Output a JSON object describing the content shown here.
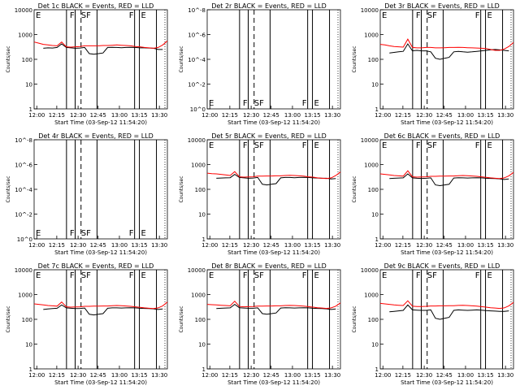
{
  "chart_data": [
    {
      "type": "line",
      "title": "Det 1c BLACK = Events, RED = LLD",
      "xlabel": "Start Time (03-Sep-12 11:54:20)",
      "ylabel": "Counts/sec",
      "yscale": "log",
      "x_tick_labels": [
        "12:00",
        "12:15",
        "12:30",
        "12:45",
        "13:00",
        "13:15",
        "13:30"
      ],
      "y_tick_labels": [
        "1",
        "10",
        "100",
        "1000",
        "10000"
      ],
      "flag_labels": [
        "E",
        "F",
        "SF",
        "F",
        "E"
      ],
      "has_data": true,
      "series": [
        {
          "name": "Events",
          "color": "#000000",
          "values": [
            null,
            null,
            280,
            290,
            285,
            300,
            420,
            300,
            290,
            280,
            285,
            300,
            170,
            160,
            170,
            180,
            300,
            305,
            300,
            295,
            300,
            305,
            300,
            290,
            290,
            285,
            280,
            250,
            250,
            null
          ]
        },
        {
          "name": "LLD",
          "color": "#ff0000",
          "values": [
            500,
            450,
            400,
            380,
            360,
            350,
            500,
            320,
            310,
            320,
            330,
            350,
            350,
            350,
            350,
            360,
            360,
            370,
            380,
            370,
            360,
            350,
            330,
            320,
            300,
            290,
            280,
            300,
            380,
            550
          ]
        }
      ]
    },
    {
      "type": "line",
      "title": "Det 2r BLACK = Events, RED = LLD",
      "xlabel": "Start Time (03-Sep-12 11:54:20)",
      "ylabel": "Counts/sec",
      "yscale": "log",
      "x_tick_labels": [
        "12:00",
        "12:15",
        "12:30",
        "12:45",
        "13:00",
        "13:15",
        "13:30"
      ],
      "y_tick_labels": [
        "10^0",
        "10^-2",
        "10^-4",
        "10^-6",
        "10^-8"
      ],
      "flag_labels": [
        "E",
        "F",
        "SF",
        "F",
        "E"
      ],
      "has_data": false,
      "series": []
    },
    {
      "type": "line",
      "title": "Det 3r BLACK = Events, RED = LLD",
      "xlabel": "Start Time (03-Sep-12 11:54:20)",
      "ylabel": "Counts/sec",
      "yscale": "log",
      "x_tick_labels": [
        "12:00",
        "12:15",
        "12:30",
        "12:45",
        "13:00",
        "13:15",
        "13:30"
      ],
      "y_tick_labels": [
        "1",
        "10",
        "100",
        "1000",
        "10000"
      ],
      "flag_labels": [
        "E",
        "F",
        "SF",
        "F",
        "E"
      ],
      "has_data": true,
      "series": [
        {
          "name": "Events",
          "color": "#000000",
          "values": [
            null,
            null,
            180,
            190,
            200,
            210,
            420,
            220,
            230,
            220,
            220,
            200,
            110,
            100,
            110,
            120,
            200,
            210,
            200,
            195,
            200,
            210,
            220,
            230,
            240,
            250,
            240,
            230,
            220,
            null
          ]
        },
        {
          "name": "LLD",
          "color": "#ff0000",
          "values": [
            400,
            380,
            350,
            330,
            320,
            310,
            650,
            300,
            290,
            290,
            300,
            300,
            290,
            290,
            295,
            300,
            300,
            305,
            300,
            295,
            290,
            285,
            280,
            270,
            250,
            230,
            230,
            260,
            330,
            480
          ]
        }
      ]
    },
    {
      "type": "line",
      "title": "Det 4r BLACK = Events, RED = LLD",
      "xlabel": "Start Time (03-Sep-12 11:54:20)",
      "ylabel": "Counts/sec",
      "yscale": "log",
      "x_tick_labels": [
        "12:00",
        "12:15",
        "12:30",
        "12:45",
        "13:00",
        "13:15",
        "13:30"
      ],
      "y_tick_labels": [
        "10^0",
        "10^-2",
        "10^-4",
        "10^-6",
        "10^-8"
      ],
      "flag_labels": [
        "E",
        "F",
        "SF",
        "F",
        "E"
      ],
      "has_data": false,
      "series": []
    },
    {
      "type": "line",
      "title": "Det 5r BLACK = Events, RED = LLD",
      "xlabel": "Start Time (03-Sep-12 11:54:20)",
      "ylabel": "Counts/sec",
      "yscale": "log",
      "x_tick_labels": [
        "12:00",
        "12:15",
        "12:30",
        "12:45",
        "13:00",
        "13:15",
        "13:30"
      ],
      "y_tick_labels": [
        "1",
        "10",
        "100",
        "1000",
        "10000"
      ],
      "flag_labels": [
        "E",
        "F",
        "SF",
        "F",
        "E"
      ],
      "has_data": true,
      "series": [
        {
          "name": "Events",
          "color": "#000000",
          "values": [
            null,
            null,
            280,
            285,
            290,
            295,
            400,
            300,
            290,
            280,
            285,
            300,
            160,
            150,
            160,
            170,
            290,
            300,
            300,
            295,
            300,
            305,
            300,
            290,
            285,
            280,
            280,
            260,
            270,
            null
          ]
        },
        {
          "name": "LLD",
          "color": "#ff0000",
          "values": [
            450,
            430,
            420,
            400,
            380,
            360,
            520,
            320,
            310,
            315,
            320,
            340,
            340,
            345,
            345,
            350,
            350,
            360,
            370,
            360,
            350,
            340,
            320,
            310,
            290,
            280,
            270,
            290,
            360,
            500
          ]
        }
      ]
    },
    {
      "type": "line",
      "title": "Det 6c BLACK = Events, RED = LLD",
      "xlabel": "Start Time (03-Sep-12 11:54:20)",
      "ylabel": "Counts/sec",
      "yscale": "log",
      "x_tick_labels": [
        "12:00",
        "12:15",
        "12:30",
        "12:45",
        "13:00",
        "13:15",
        "13:30"
      ],
      "y_tick_labels": [
        "1",
        "10",
        "100",
        "1000",
        "10000"
      ],
      "flag_labels": [
        "E",
        "F",
        "SF",
        "F",
        "E"
      ],
      "has_data": true,
      "series": [
        {
          "name": "Events",
          "color": "#000000",
          "values": [
            null,
            null,
            270,
            280,
            285,
            290,
            420,
            290,
            280,
            275,
            280,
            290,
            150,
            140,
            150,
            160,
            285,
            295,
            290,
            285,
            290,
            295,
            290,
            280,
            275,
            270,
            265,
            250,
            260,
            null
          ]
        },
        {
          "name": "LLD",
          "color": "#ff0000",
          "values": [
            420,
            400,
            380,
            360,
            350,
            340,
            560,
            320,
            310,
            315,
            320,
            335,
            335,
            340,
            340,
            345,
            345,
            355,
            360,
            355,
            345,
            335,
            320,
            305,
            290,
            280,
            270,
            290,
            350,
            480
          ]
        }
      ]
    },
    {
      "type": "line",
      "title": "Det 7c BLACK = Events, RED = LLD",
      "xlabel": "Start Time (03-Sep-12 11:54:20)",
      "ylabel": "Counts/sec",
      "yscale": "log",
      "x_tick_labels": [
        "12:00",
        "12:15",
        "12:30",
        "12:45",
        "13:00",
        "13:15",
        "13:30"
      ],
      "y_tick_labels": [
        "1",
        "10",
        "100",
        "1000",
        "10000"
      ],
      "flag_labels": [
        "E",
        "F",
        "SF",
        "F",
        "E"
      ],
      "has_data": true,
      "series": [
        {
          "name": "Events",
          "color": "#000000",
          "values": [
            null,
            null,
            250,
            260,
            270,
            280,
            380,
            290,
            280,
            270,
            275,
            285,
            160,
            150,
            160,
            170,
            280,
            290,
            290,
            285,
            290,
            295,
            290,
            280,
            275,
            270,
            265,
            250,
            260,
            null
          ]
        },
        {
          "name": "LLD",
          "color": "#ff0000",
          "values": [
            420,
            400,
            380,
            360,
            350,
            340,
            500,
            320,
            310,
            315,
            320,
            335,
            335,
            340,
            340,
            345,
            345,
            355,
            360,
            355,
            345,
            335,
            320,
            305,
            290,
            280,
            270,
            290,
            350,
            500
          ]
        }
      ]
    },
    {
      "type": "line",
      "title": "Det 8r BLACK = Events, RED = LLD",
      "xlabel": "Start Time (03-Sep-12 11:54:20)",
      "ylabel": "Counts/sec",
      "yscale": "log",
      "x_tick_labels": [
        "12:00",
        "12:15",
        "12:30",
        "12:45",
        "13:00",
        "13:15",
        "13:30"
      ],
      "y_tick_labels": [
        "1",
        "10",
        "100",
        "1000",
        "10000"
      ],
      "flag_labels": [
        "E",
        "F",
        "SF",
        "F",
        "E"
      ],
      "has_data": true,
      "series": [
        {
          "name": "Events",
          "color": "#000000",
          "values": [
            null,
            null,
            270,
            280,
            285,
            290,
            400,
            295,
            285,
            280,
            280,
            290,
            170,
            160,
            170,
            180,
            285,
            295,
            290,
            285,
            290,
            295,
            290,
            280,
            275,
            270,
            265,
            250,
            260,
            null
          ]
        },
        {
          "name": "LLD",
          "color": "#ff0000",
          "values": [
            400,
            390,
            380,
            370,
            360,
            350,
            540,
            330,
            320,
            325,
            330,
            340,
            340,
            345,
            345,
            350,
            350,
            360,
            365,
            360,
            350,
            340,
            325,
            310,
            295,
            285,
            275,
            290,
            340,
            460
          ]
        }
      ]
    },
    {
      "type": "line",
      "title": "Det 9c BLACK = Events, RED = LLD",
      "xlabel": "Start Time (03-Sep-12 11:54:20)",
      "ylabel": "Counts/sec",
      "yscale": "log",
      "x_tick_labels": [
        "12:00",
        "12:15",
        "12:30",
        "12:45",
        "13:00",
        "13:15",
        "13:30"
      ],
      "y_tick_labels": [
        "1",
        "10",
        "100",
        "1000",
        "10000"
      ],
      "flag_labels": [
        "E",
        "F",
        "SF",
        "F",
        "E"
      ],
      "has_data": true,
      "series": [
        {
          "name": "Events",
          "color": "#000000",
          "values": [
            null,
            null,
            200,
            210,
            220,
            230,
            380,
            240,
            235,
            230,
            230,
            240,
            110,
            100,
            110,
            120,
            230,
            240,
            235,
            230,
            235,
            240,
            235,
            225,
            220,
            215,
            210,
            210,
            220,
            null
          ]
        },
        {
          "name": "LLD",
          "color": "#ff0000",
          "values": [
            440,
            420,
            400,
            380,
            370,
            360,
            560,
            340,
            330,
            330,
            335,
            345,
            345,
            350,
            350,
            355,
            355,
            365,
            370,
            360,
            350,
            340,
            325,
            310,
            295,
            285,
            275,
            290,
            350,
            480
          ]
        }
      ]
    }
  ]
}
